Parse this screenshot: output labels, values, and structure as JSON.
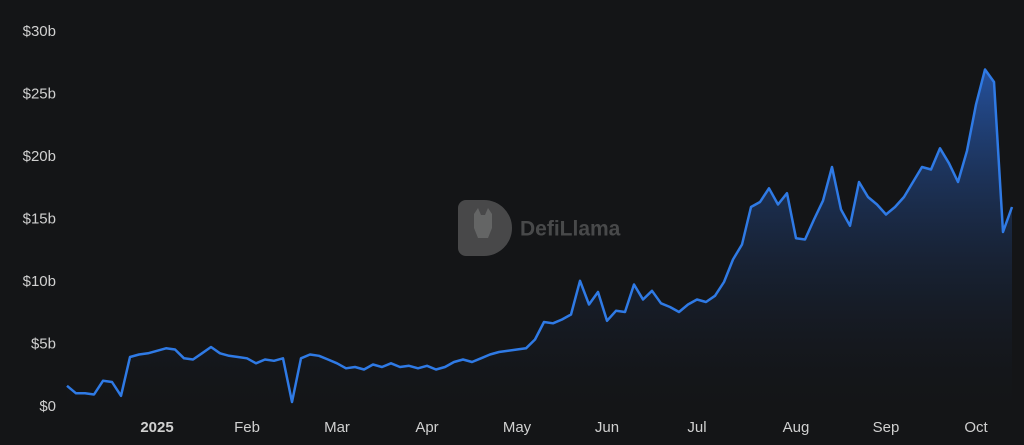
{
  "chart_data": {
    "type": "area",
    "watermark": "DefiLlama",
    "categories": [
      null,
      null,
      null,
      null,
      null,
      null,
      null,
      null,
      null,
      null,
      "2025",
      null,
      null,
      null,
      null,
      null,
      null,
      null,
      null,
      null,
      "Feb",
      null,
      null,
      null,
      null,
      null,
      null,
      null,
      null,
      null,
      "Mar",
      null,
      null,
      null,
      null,
      null,
      null,
      null,
      null,
      null,
      "Apr",
      null,
      null,
      null,
      null,
      null,
      null,
      null,
      null,
      null,
      "May",
      null,
      null,
      null,
      null,
      null,
      null,
      null,
      null,
      null,
      "Jun",
      null,
      null,
      null,
      null,
      null,
      null,
      null,
      null,
      null,
      "Jul",
      null,
      null,
      null,
      null,
      null,
      null,
      null,
      null,
      null,
      null,
      "Aug",
      null,
      null,
      null,
      null,
      null,
      null,
      null,
      null,
      null,
      "Sep",
      null,
      null,
      null,
      null,
      null,
      null,
      null,
      null,
      null,
      "Oct",
      null,
      null,
      null,
      null
    ],
    "series": [
      {
        "color": "#2f7ae5",
        "values": [
          1.7,
          1.1,
          1.1,
          1.0,
          2.1,
          2.0,
          0.9,
          4.0,
          4.2,
          4.3,
          4.5,
          4.7,
          4.6,
          3.9,
          3.8,
          4.3,
          4.8,
          4.3,
          4.1,
          4.0,
          3.9,
          3.5,
          3.8,
          3.7,
          3.9,
          0.4,
          3.9,
          4.2,
          4.1,
          3.8,
          3.5,
          3.1,
          3.2,
          3.0,
          3.4,
          3.2,
          3.5,
          3.2,
          3.3,
          3.1,
          3.3,
          3.0,
          3.2,
          3.6,
          3.8,
          3.6,
          3.9,
          4.2,
          4.4,
          4.5,
          4.6,
          4.7,
          5.4,
          6.8,
          6.7,
          7.0,
          7.4,
          10.1,
          8.2,
          9.2,
          6.9,
          7.7,
          7.6,
          9.8,
          8.6,
          9.3,
          8.3,
          8.0,
          7.6,
          8.2,
          8.6,
          8.4,
          8.9,
          10.0,
          11.8,
          13.0,
          16.0,
          16.4,
          17.5,
          16.2,
          17.1,
          13.5,
          13.4,
          15.0,
          16.5,
          19.2,
          15.8,
          14.5,
          18.0,
          16.8,
          16.2,
          15.4,
          16.0,
          16.8,
          18.0,
          19.2,
          19.0,
          20.7,
          19.5,
          18.0,
          20.5,
          24.2,
          27.0,
          26.0,
          14.0,
          16.0
        ]
      }
    ],
    "ylim": [
      0,
      30
    ],
    "yticks": [
      {
        "value": 0,
        "label": "$0"
      },
      {
        "value": 5,
        "label": "$5b"
      },
      {
        "value": 10,
        "label": "$10b"
      },
      {
        "value": 15,
        "label": "$15b"
      },
      {
        "value": 20,
        "label": "$20b"
      },
      {
        "value": 25,
        "label": "$25b"
      },
      {
        "value": 30,
        "label": "$30b"
      }
    ],
    "grid": false
  }
}
